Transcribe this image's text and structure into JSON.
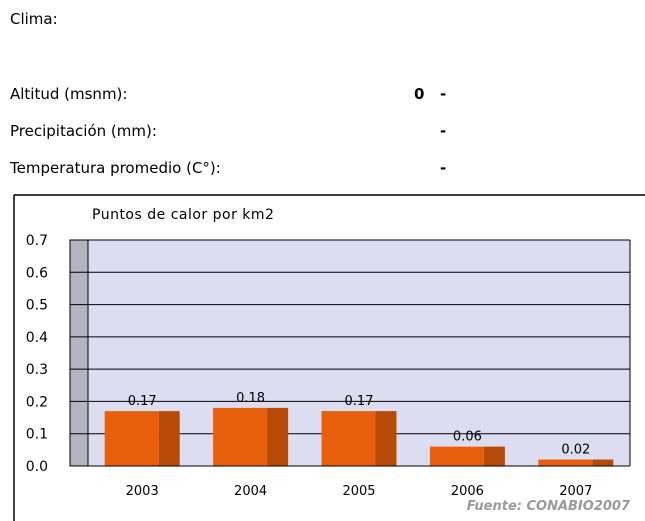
{
  "info": {
    "clima_label": "Clima:",
    "altitud_label": "Altitud (msnm):",
    "altitud_value": "0",
    "altitud_dash": "-",
    "precip_label": "Precipitación (mm):",
    "precip_value": "-",
    "temp_label": "Temperatura promedio (C°):",
    "temp_value": "-"
  },
  "chart_data": {
    "type": "bar",
    "title": "Puntos de calor por km2",
    "categories": [
      "2003",
      "2004",
      "2005",
      "2006",
      "2007"
    ],
    "values": [
      0.17,
      0.18,
      0.17,
      0.06,
      0.02
    ],
    "data_labels": [
      "0.17",
      "0.18",
      "0.17",
      "0.06",
      "0.02"
    ],
    "ylim": [
      0,
      0.7
    ],
    "yticks": [
      "0.0",
      "0.1",
      "0.2",
      "0.3",
      "0.4",
      "0.5",
      "0.6",
      "0.7"
    ],
    "grid": true,
    "source": "Fuente: CONABIO2007",
    "colors": {
      "bar_front": "#E8600C",
      "bar_side": "#B84A08",
      "plot_bg": "#DCDDF0",
      "side_wall": "#B4B4BE"
    }
  }
}
